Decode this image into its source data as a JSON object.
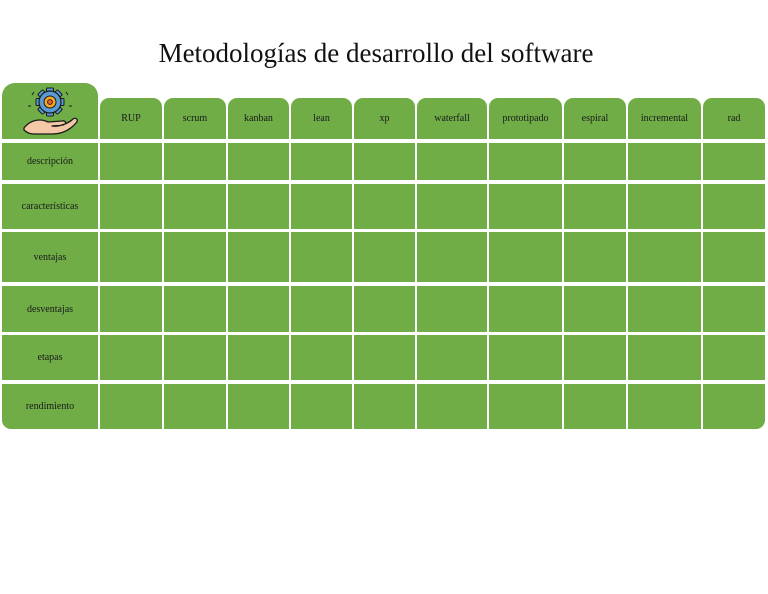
{
  "title": "Metodologías de desarrollo del software",
  "corner_icon": "gear-hand-icon",
  "colors": {
    "cell": "#70ad47",
    "gear": "#5b9bd5",
    "hand": "#f4c7a6",
    "background": "#ffffff"
  },
  "columns": [
    "RUP",
    "scrum",
    "kanban",
    "lean",
    "xp",
    "waterfall",
    "prototipado",
    "espiral",
    "incremental",
    "rad"
  ],
  "rows": [
    "descripción",
    "características",
    "ventajas",
    "desventajas",
    "etapas",
    "rendimiento"
  ]
}
